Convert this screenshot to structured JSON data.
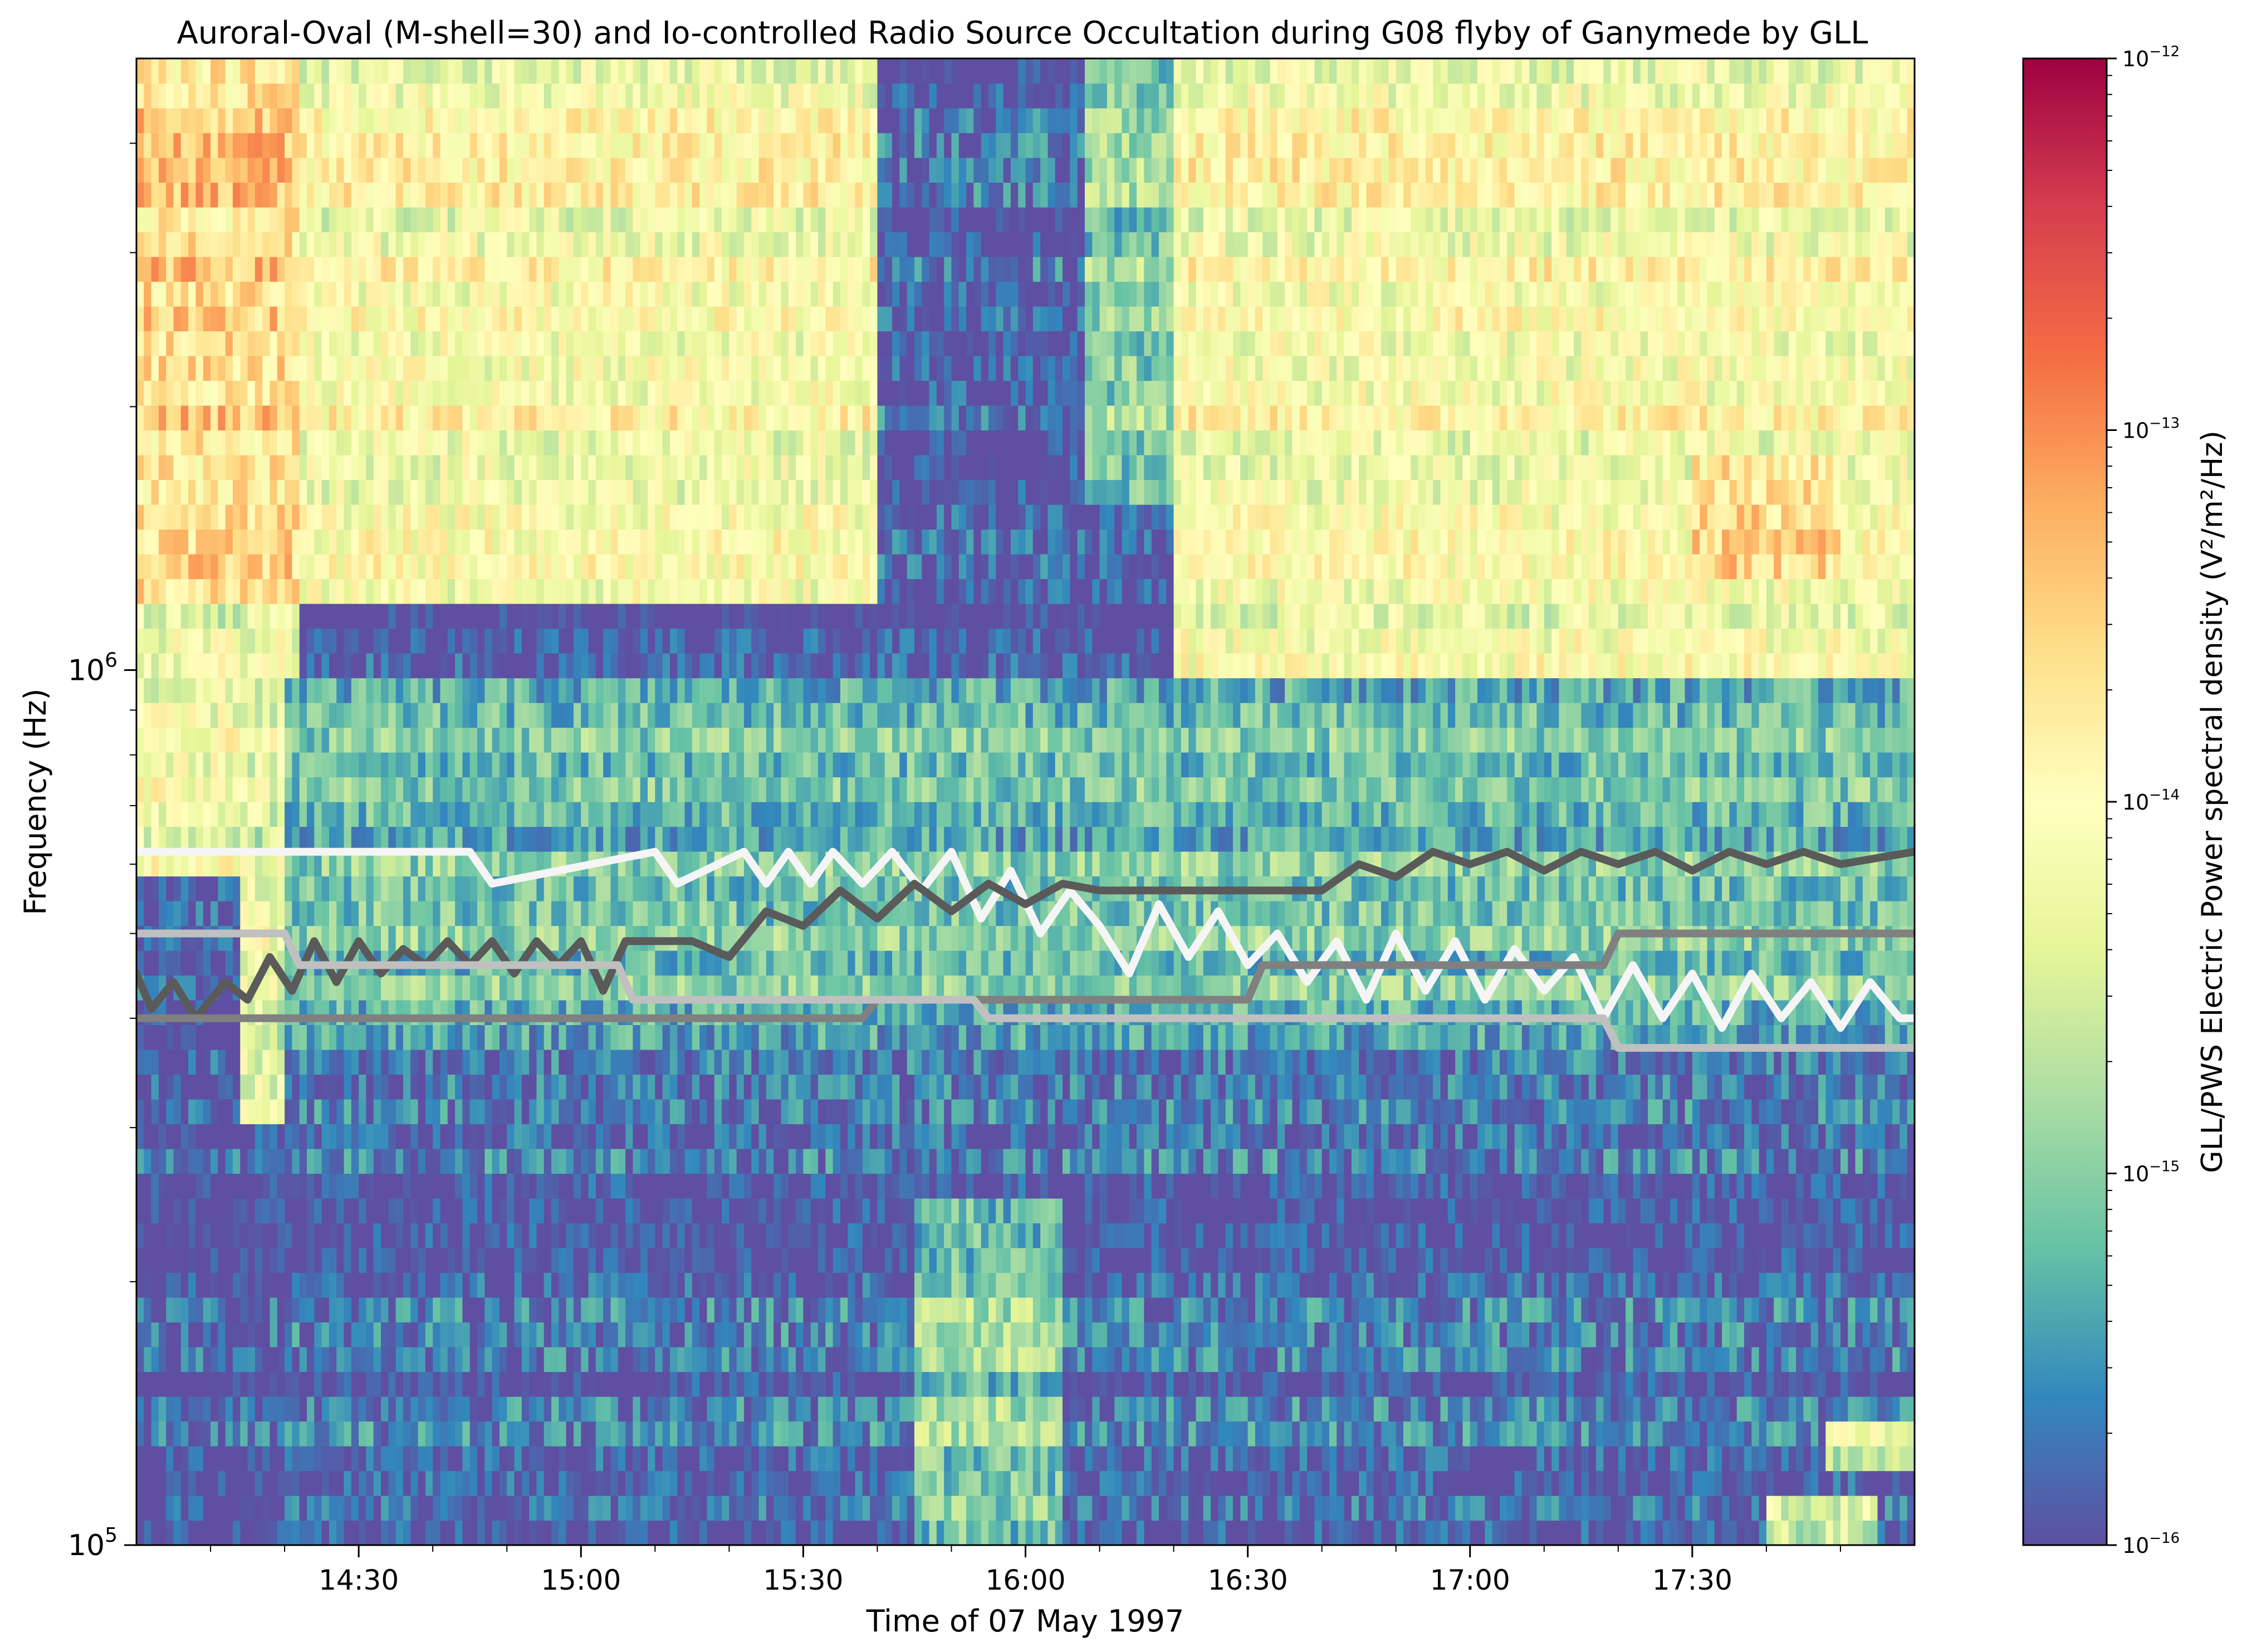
{
  "chart_data": {
    "type": "heatmap",
    "title": "Auroral-Oval (M-shell=30) and Io-controlled Radio Source Occultation during G08 flyby of Ganymede by GLL",
    "xlabel": "Time of 07 May 1997",
    "ylabel": "Frequency (Hz)",
    "colorbar_label": "GLL/PWS Electric Power spectral density (V²/m²/Hz)",
    "colormap": "Spectral_r",
    "colormap_stops": [
      "#5e4fa2",
      "#3288bd",
      "#66c2a5",
      "#abdda4",
      "#e6f598",
      "#ffffbf",
      "#fee08b",
      "#fdae61",
      "#f46d43",
      "#d53e4f",
      "#9e0142"
    ],
    "x_range": [
      "14:00",
      "18:00"
    ],
    "x_ticks": [
      "14:30",
      "15:00",
      "15:30",
      "16:00",
      "16:30",
      "17:00",
      "17:30"
    ],
    "y_scale": "log",
    "y_range_hz": [
      100000,
      5000000
    ],
    "y_ticks": [
      {
        "value": 100000,
        "base": "10",
        "exp": "5"
      },
      {
        "value": 1000000,
        "base": "10",
        "exp": "6"
      }
    ],
    "color_scale": "log",
    "color_range": [
      1e-16,
      1e-12
    ],
    "colorbar_ticks": [
      {
        "value": 1e-16,
        "base": "10",
        "exp": "−16"
      },
      {
        "value": 1e-15,
        "base": "10",
        "exp": "−15"
      },
      {
        "value": 1e-14,
        "base": "10",
        "exp": "−14"
      },
      {
        "value": 1e-13,
        "base": "10",
        "exp": "−13"
      },
      {
        "value": 1e-12,
        "base": "10",
        "exp": "−12"
      }
    ],
    "spectrogram_regions": [
      {
        "t": [
          "14:00",
          "14:22"
        ],
        "f_hz": [
          1200000,
          5000000
        ],
        "log_psd": -13.6
      },
      {
        "t": [
          "14:00",
          "14:22"
        ],
        "f_hz": [
          600000,
          1200000
        ],
        "log_psd": -14.2
      },
      {
        "t": [
          "14:14",
          "14:20"
        ],
        "f_hz": [
          300000,
          900000
        ],
        "log_psd": -14.4
      },
      {
        "t": [
          "14:22",
          "15:40"
        ],
        "f_hz": [
          1200000,
          5000000
        ],
        "log_psd": -14.1
      },
      {
        "t": [
          "15:40",
          "16:08"
        ],
        "f_hz": [
          1200000,
          5000000
        ],
        "log_psd": -15.9
      },
      {
        "t": [
          "16:08",
          "16:20"
        ],
        "f_hz": [
          1500000,
          5000000
        ],
        "log_psd": -15.0
      },
      {
        "t": [
          "16:20",
          "18:00"
        ],
        "f_hz": [
          1000000,
          5000000
        ],
        "log_psd": -14.1
      },
      {
        "t": [
          "17:30",
          "17:50"
        ],
        "f_hz": [
          1300000,
          1800000
        ],
        "log_psd": -13.6
      },
      {
        "t": [
          "14:20",
          "18:00"
        ],
        "f_hz": [
          380000,
          1000000
        ],
        "log_psd": -15.2
      },
      {
        "t": [
          "14:20",
          "18:00"
        ],
        "f_hz": [
          100000,
          380000
        ],
        "log_psd": -15.8
      },
      {
        "t": [
          "15:45",
          "16:05"
        ],
        "f_hz": [
          100000,
          250000
        ],
        "log_psd": -15.0
      },
      {
        "t": [
          "17:48",
          "18:00"
        ],
        "f_hz": [
          120000,
          140000
        ],
        "log_psd": -14.5
      },
      {
        "t": [
          "17:40",
          "17:55"
        ],
        "f_hz": [
          100000,
          112000
        ],
        "log_psd": -14.4
      }
    ],
    "series": [
      {
        "color": "#f5f5f5",
        "x": [
          "14:00",
          "14:45",
          "14:48",
          "15:10",
          "15:13",
          "15:22",
          "15:25",
          "15:28",
          "15:31",
          "15:34",
          "15:38",
          "15:42",
          "15:46",
          "15:50",
          "15:54",
          "15:58",
          "16:02",
          "16:06",
          "16:10",
          "16:14",
          "16:18",
          "16:22",
          "16:26",
          "16:30",
          "16:34",
          "16:38",
          "16:42",
          "16:46",
          "16:50",
          "16:54",
          "16:58",
          "17:02",
          "17:06",
          "17:10",
          "17:14",
          "17:18",
          "17:22",
          "17:26",
          "17:30",
          "17:34",
          "17:38",
          "17:42",
          "17:46",
          "17:50",
          "17:54",
          "17:58",
          "18:00"
        ],
        "y_hz": [
          620000,
          620000,
          570000,
          620000,
          570000,
          620000,
          570000,
          620000,
          570000,
          620000,
          570000,
          620000,
          560000,
          620000,
          520000,
          590000,
          500000,
          560000,
          510000,
          450000,
          540000,
          470000,
          530000,
          460000,
          500000,
          440000,
          490000,
          420000,
          500000,
          430000,
          490000,
          420000,
          480000,
          430000,
          470000,
          400000,
          460000,
          400000,
          450000,
          390000,
          450000,
          400000,
          440000,
          390000,
          440000,
          400000,
          400000
        ]
      },
      {
        "color": "#5a5a5a",
        "x": [
          "14:00",
          "14:02",
          "14:05",
          "14:08",
          "14:12",
          "14:15",
          "14:18",
          "14:21",
          "14:24",
          "14:27",
          "14:30",
          "14:33",
          "14:36",
          "14:39",
          "14:42",
          "14:45",
          "14:48",
          "14:51",
          "14:54",
          "14:57",
          "15:00",
          "15:03",
          "15:06",
          "15:15",
          "15:20",
          "15:25",
          "15:30",
          "15:35",
          "15:40",
          "15:45",
          "15:50",
          "15:55",
          "16:00",
          "16:05",
          "16:10",
          "16:20",
          "16:30",
          "16:40",
          "16:45",
          "16:50",
          "16:55",
          "17:00",
          "17:05",
          "17:10",
          "17:15",
          "17:20",
          "17:25",
          "17:30",
          "17:35",
          "17:40",
          "17:45",
          "17:50",
          "18:00"
        ],
        "y_hz": [
          450000,
          410000,
          440000,
          400000,
          440000,
          420000,
          470000,
          430000,
          490000,
          440000,
          490000,
          450000,
          480000,
          460000,
          490000,
          460000,
          490000,
          450000,
          490000,
          460000,
          490000,
          430000,
          490000,
          490000,
          470000,
          530000,
          510000,
          560000,
          520000,
          570000,
          530000,
          570000,
          540000,
          570000,
          560000,
          560000,
          560000,
          560000,
          600000,
          580000,
          620000,
          600000,
          620000,
          590000,
          620000,
          600000,
          620000,
          590000,
          620000,
          600000,
          620000,
          600000,
          620000
        ]
      },
      {
        "color": "#808080",
        "x": [
          "14:00",
          "15:38",
          "15:40",
          "16:30",
          "16:32",
          "17:18",
          "17:20",
          "18:00"
        ],
        "y_hz": [
          400000,
          400000,
          420000,
          420000,
          460000,
          460000,
          500000,
          500000
        ]
      },
      {
        "color": "#c0c0c0",
        "x": [
          "14:00",
          "14:20",
          "14:22",
          "15:05",
          "15:07",
          "15:53",
          "15:55",
          "17:18",
          "17:20",
          "18:00"
        ],
        "y_hz": [
          500000,
          500000,
          460000,
          460000,
          420000,
          420000,
          400000,
          400000,
          370000,
          370000
        ]
      }
    ]
  }
}
